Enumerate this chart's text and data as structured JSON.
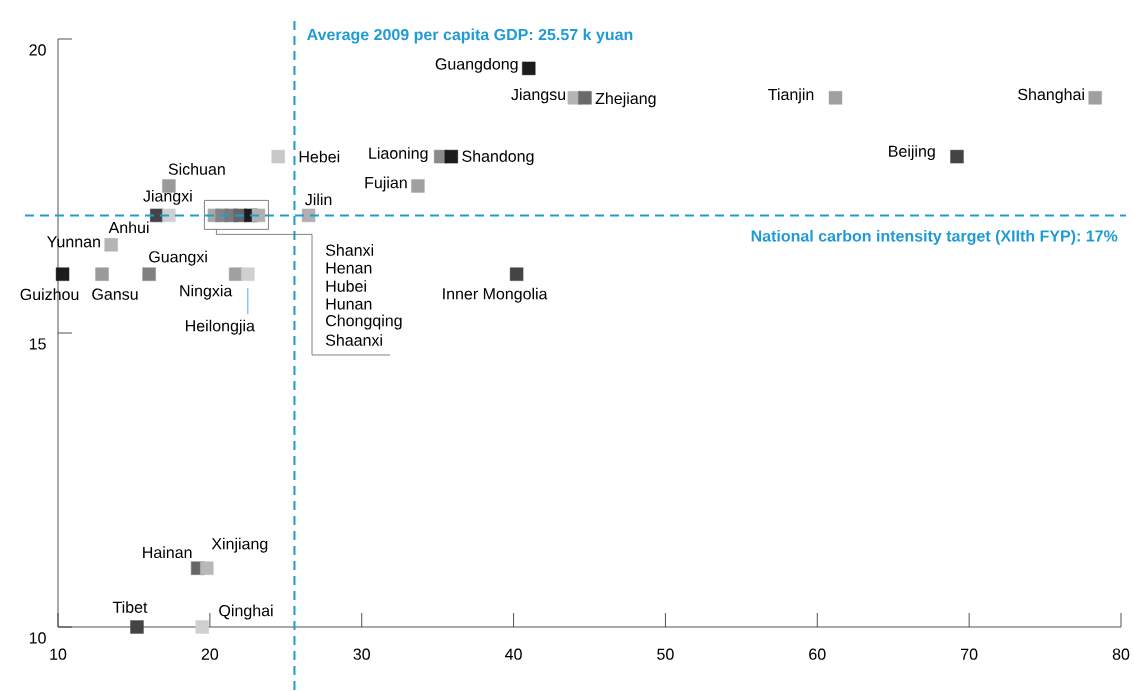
{
  "chart_data": {
    "type": "scatter",
    "marker": "square",
    "xlim": [
      10,
      80
    ],
    "ylim": [
      10,
      20
    ],
    "xticks": [
      10,
      20,
      30,
      40,
      50,
      60,
      70,
      80
    ],
    "yticks": [
      10,
      15,
      20
    ],
    "x": [
      10.3,
      12.9,
      16.0,
      21.7,
      22.5,
      13.5,
      16.5,
      17.3,
      17.3,
      26.5,
      20.3,
      20.8,
      21.4,
      22.0,
      22.7,
      23.2,
      24.5,
      35.2,
      35.9,
      33.7,
      41.0,
      44.0,
      44.7,
      61.2,
      78.3,
      69.2,
      40.2,
      19.2,
      19.8,
      15.2,
      19.5
    ],
    "values": [
      16,
      16,
      16,
      16,
      16,
      16.5,
      17,
      17,
      17.5,
      17,
      17,
      17,
      17,
      17,
      17,
      17,
      18,
      18,
      18,
      17.5,
      19.5,
      19,
      19,
      19,
      19,
      18,
      16,
      11,
      11,
      10,
      10
    ],
    "colors": [
      "#1c1b1f",
      "#9a9a9a",
      "#808080",
      "#a0a0a0",
      "#d0d0d0",
      "#b4b4b4",
      "#444447",
      "#d0d0d0",
      "#9a9a9a",
      "#b0b0b0",
      "#a8a8a8",
      "#858585",
      "#7a7a7a",
      "#666666",
      "#1c1b20",
      "#b0b0b0",
      "#c8c8c8",
      "#8a8a8a",
      "#1c1b1f",
      "#a0a0a0",
      "#1c1b1f",
      "#b4b4b4",
      "#6a6a6a",
      "#a0a0a0",
      "#a0a0a0",
      "#444447",
      "#444447",
      "#666666",
      "#b8b8b8",
      "#444447",
      "#d0d0d0"
    ],
    "annotations": [
      {
        "text": "Guizhou",
        "x": 10.3,
        "y": 16
      },
      {
        "text": "Gansu",
        "x": 12.9,
        "y": 16
      },
      {
        "text": "Guangxi",
        "x": 16.0,
        "y": 16
      },
      {
        "text": "Ningxia",
        "x": 21.7,
        "y": 16
      },
      {
        "text": "Heilongjia",
        "x": 22.5,
        "y": 16
      },
      {
        "text": "Yunnan",
        "x": 13.5,
        "y": 16.5
      },
      {
        "text": "Anhui",
        "x": 16.5,
        "y": 17
      },
      {
        "text": "Jiangxi",
        "x": 17.3,
        "y": 17
      },
      {
        "text": "Sichuan",
        "x": 17.3,
        "y": 17.5
      },
      {
        "text": "Jilin",
        "x": 26.5,
        "y": 17
      },
      "Shanxi",
      "Henan",
      "Hubei",
      "Hunan",
      "Chongqing",
      "Shaanxi",
      {
        "text": "Hebei",
        "x": 24.5,
        "y": 18
      },
      {
        "text": "Liaoning",
        "x": 35.2,
        "y": 18
      },
      {
        "text": "Shandong",
        "x": 35.9,
        "y": 18
      },
      {
        "text": "Fujian",
        "x": 33.7,
        "y": 17.5
      },
      {
        "text": "Guangdong",
        "x": 41.0,
        "y": 19.5
      },
      {
        "text": "Jiangsu",
        "x": 44.0,
        "y": 19
      },
      {
        "text": "Zhejiang",
        "x": 44.7,
        "y": 19
      },
      {
        "text": "Tianjin",
        "x": 61.2,
        "y": 19
      },
      {
        "text": "Shanghai",
        "x": 78.3,
        "y": 19
      },
      {
        "text": "Beijing",
        "x": 69.2,
        "y": 18
      },
      {
        "text": "Inner Mongolia",
        "x": 40.2,
        "y": 16
      },
      {
        "text": "Hainan",
        "x": 19.2,
        "y": 11
      },
      {
        "text": "Xinjiang",
        "x": 19.8,
        "y": 11
      },
      {
        "text": "Tibet",
        "x": 15.2,
        "y": 10
      },
      {
        "text": "Qinghai",
        "x": 19.5,
        "y": 10
      }
    ],
    "ref_lines": [
      {
        "axis": "x",
        "value": 25.57,
        "label": "Average 2009 per capita GDP: 25.57 k yuan",
        "color": "#1e9bd7",
        "line_style": "dashed"
      },
      {
        "axis": "y",
        "value": 17,
        "label": "National carbon intensity target (XIIth FYP): 17%",
        "color": "#1e9bd7",
        "line_style": "dashed"
      }
    ]
  }
}
